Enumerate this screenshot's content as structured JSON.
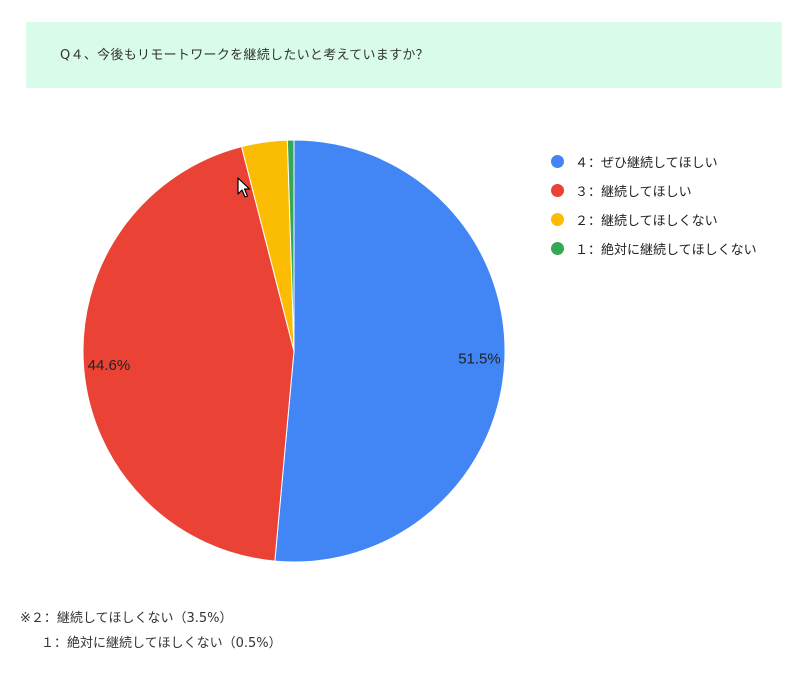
{
  "question": {
    "text": "Q４、今後もリモートワークを継続したいと考えていますか？"
  },
  "chart_data": {
    "type": "pie",
    "title": "",
    "start_angle_deg": 0,
    "direction": "clockwise",
    "slices": [
      {
        "label": "４：ぜひ継続してほしい",
        "value": 51.5,
        "value_label": "51.5%",
        "color": "#4285f4"
      },
      {
        "label": "３：継続してほしい",
        "value": 44.6,
        "value_label": "44.6%",
        "color": "#ea4335"
      },
      {
        "label": "２：継続してほしくない",
        "value": 3.5,
        "value_label": "",
        "color": "#fbbc04"
      },
      {
        "label": "１：絶対に継続してほしくない",
        "value": 0.5,
        "value_label": "",
        "color": "#34a853"
      }
    ],
    "legend": "right"
  },
  "notes": {
    "line1": "※２：継続してほしくない（3.5%）",
    "line2": "１：絶対に継続してほしくない（0.5%）"
  }
}
